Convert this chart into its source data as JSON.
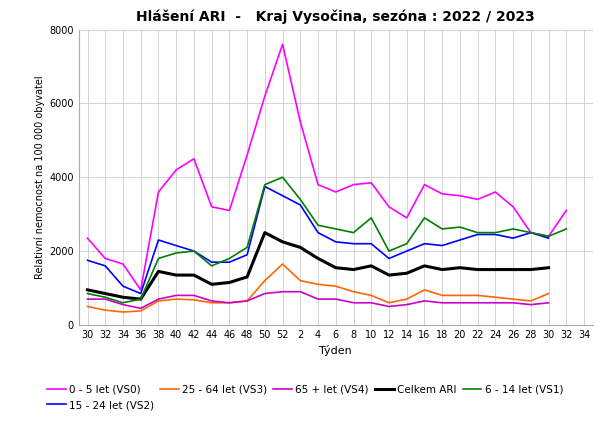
{
  "title": "Hlášení ARI  -   Kraj Vysočina, sezóna : 2022 / 2023",
  "xlabel": "Týden",
  "ylabel": "Relativní nemocnost na 100 000 obyvatel",
  "ylim": [
    0,
    8000
  ],
  "yticks": [
    0,
    2000,
    4000,
    6000,
    8000
  ],
  "x_labels": [
    "30",
    "32",
    "34",
    "36",
    "38",
    "40",
    "42",
    "44",
    "46",
    "48",
    "50",
    "52",
    "2",
    "4",
    "6",
    "8",
    "10",
    "12",
    "14",
    "16",
    "18",
    "20",
    "22",
    "24",
    "26",
    "28",
    "30",
    "32",
    "34"
  ],
  "series": {
    "VS0": {
      "label": "0 - 5 let (VS0)",
      "color": "#ff00ff",
      "lw": 1.2,
      "values": [
        2350,
        1800,
        1650,
        950,
        3600,
        4200,
        4500,
        3200,
        3100,
        4600,
        6200,
        7600,
        5500,
        3800,
        3600,
        3800,
        3850,
        3200,
        2900,
        3800,
        3550,
        3500,
        3400,
        3600,
        3200,
        2500,
        2400,
        3100,
        null
      ]
    },
    "VS1": {
      "label": "6 - 14 let (VS1)",
      "color": "#008000",
      "lw": 1.2,
      "values": [
        850,
        750,
        600,
        700,
        1800,
        1950,
        2000,
        1600,
        1800,
        2100,
        3800,
        4000,
        3400,
        2700,
        2600,
        2500,
        2900,
        2000,
        2200,
        2900,
        2600,
        2650,
        2500,
        2500,
        2600,
        2500,
        2400,
        2600,
        null
      ]
    },
    "VS2": {
      "label": "15 - 24 let (VS2)",
      "color": "#0000ff",
      "lw": 1.2,
      "values": [
        1750,
        1600,
        1050,
        850,
        2300,
        2150,
        2000,
        1700,
        1700,
        1900,
        3750,
        3500,
        3250,
        2500,
        2250,
        2200,
        2200,
        1800,
        2000,
        2200,
        2150,
        2300,
        2450,
        2450,
        2350,
        2500,
        2350,
        null,
        null
      ]
    },
    "VS3": {
      "label": "25 - 64 let (VS3)",
      "color": "#ff6600",
      "lw": 1.2,
      "values": [
        500,
        400,
        350,
        380,
        650,
        700,
        680,
        600,
        600,
        650,
        1200,
        1650,
        1200,
        1100,
        1050,
        900,
        800,
        600,
        700,
        950,
        800,
        800,
        800,
        750,
        700,
        650,
        850,
        null,
        null
      ]
    },
    "VS4": {
      "label": "65 + let (VS4)",
      "color": "#cc00cc",
      "lw": 1.2,
      "values": [
        700,
        700,
        550,
        450,
        700,
        800,
        800,
        650,
        600,
        650,
        850,
        900,
        900,
        700,
        700,
        600,
        600,
        500,
        550,
        650,
        600,
        600,
        600,
        600,
        600,
        550,
        600,
        null,
        null
      ]
    },
    "Celkem": {
      "label": "Celkem ARI",
      "color": "#000000",
      "lw": 2.2,
      "values": [
        950,
        850,
        750,
        700,
        1450,
        1350,
        1350,
        1100,
        1150,
        1300,
        2500,
        2250,
        2100,
        1800,
        1550,
        1500,
        1600,
        1350,
        1400,
        1600,
        1500,
        1550,
        1500,
        1500,
        1500,
        1500,
        1550,
        null,
        null
      ]
    }
  },
  "background_color": "#ffffff",
  "grid_color": "#cccccc",
  "title_fontsize": 10,
  "axis_fontsize": 7,
  "legend_fontsize": 7.5,
  "ylabel_fontsize": 7
}
